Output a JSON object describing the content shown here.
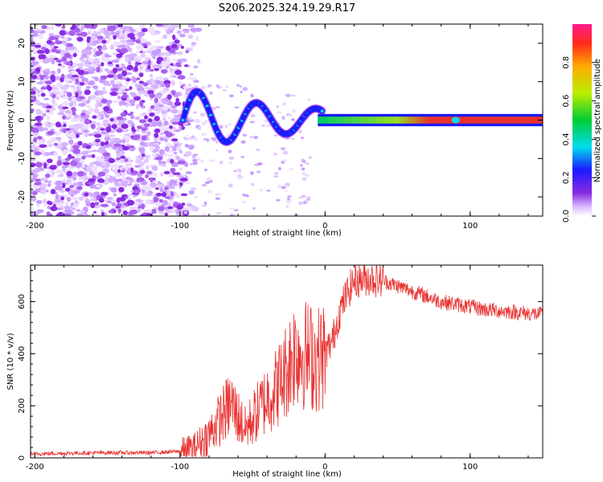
{
  "chart_data": [
    {
      "type": "heatmap",
      "title": "S206.2025.324.19.29.R17",
      "xlabel": "Height of straight line (km)",
      "ylabel": "Frequency (Hz)",
      "xlim": [
        -203,
        150
      ],
      "ylim": [
        -25,
        25
      ],
      "x_ticks": [
        -200,
        -100,
        0,
        100
      ],
      "y_ticks": [
        -20,
        -10,
        0,
        10,
        20
      ],
      "colorbar": {
        "label": "Normalized spectral amplitude",
        "range": [
          0.0,
          1.0
        ],
        "ticks": [
          0.0,
          0.2,
          0.4,
          0.6,
          0.8
        ]
      },
      "features": {
        "noise_region_x": [
          -203,
          -95
        ],
        "carrier_band_x": [
          -5,
          150
        ],
        "carrier_frequency_hz": 0
      }
    },
    {
      "type": "line",
      "xlabel": "Height of straight line (km)",
      "ylabel": "SNR (10 * v/v)",
      "xlim": [
        -203,
        150
      ],
      "ylim": [
        0,
        740
      ],
      "x_ticks": [
        -200,
        -100,
        0,
        100
      ],
      "y_ticks": [
        0,
        200,
        400,
        600
      ],
      "series": [
        {
          "name": "SNR",
          "color": "#e8312f",
          "x": [
            -203,
            -180,
            -150,
            -120,
            -100,
            -90,
            -80,
            -70,
            -65,
            -60,
            -55,
            -50,
            -45,
            -40,
            -35,
            -30,
            -25,
            -20,
            -15,
            -10,
            -5,
            0,
            5,
            10,
            15,
            20,
            30,
            40,
            50,
            60,
            70,
            80,
            90,
            100,
            110,
            120,
            130,
            140,
            150
          ],
          "values": [
            15,
            18,
            20,
            20,
            25,
            40,
            90,
            170,
            210,
            160,
            110,
            150,
            190,
            230,
            260,
            300,
            360,
            420,
            400,
            390,
            380,
            400,
            450,
            560,
            630,
            680,
            690,
            680,
            660,
            640,
            620,
            600,
            590,
            580,
            570,
            565,
            560,
            555,
            550
          ]
        }
      ]
    }
  ],
  "colors": {
    "line": "#e8312f",
    "noise": "#8a2be2",
    "carrier_core": "#e8312f"
  }
}
